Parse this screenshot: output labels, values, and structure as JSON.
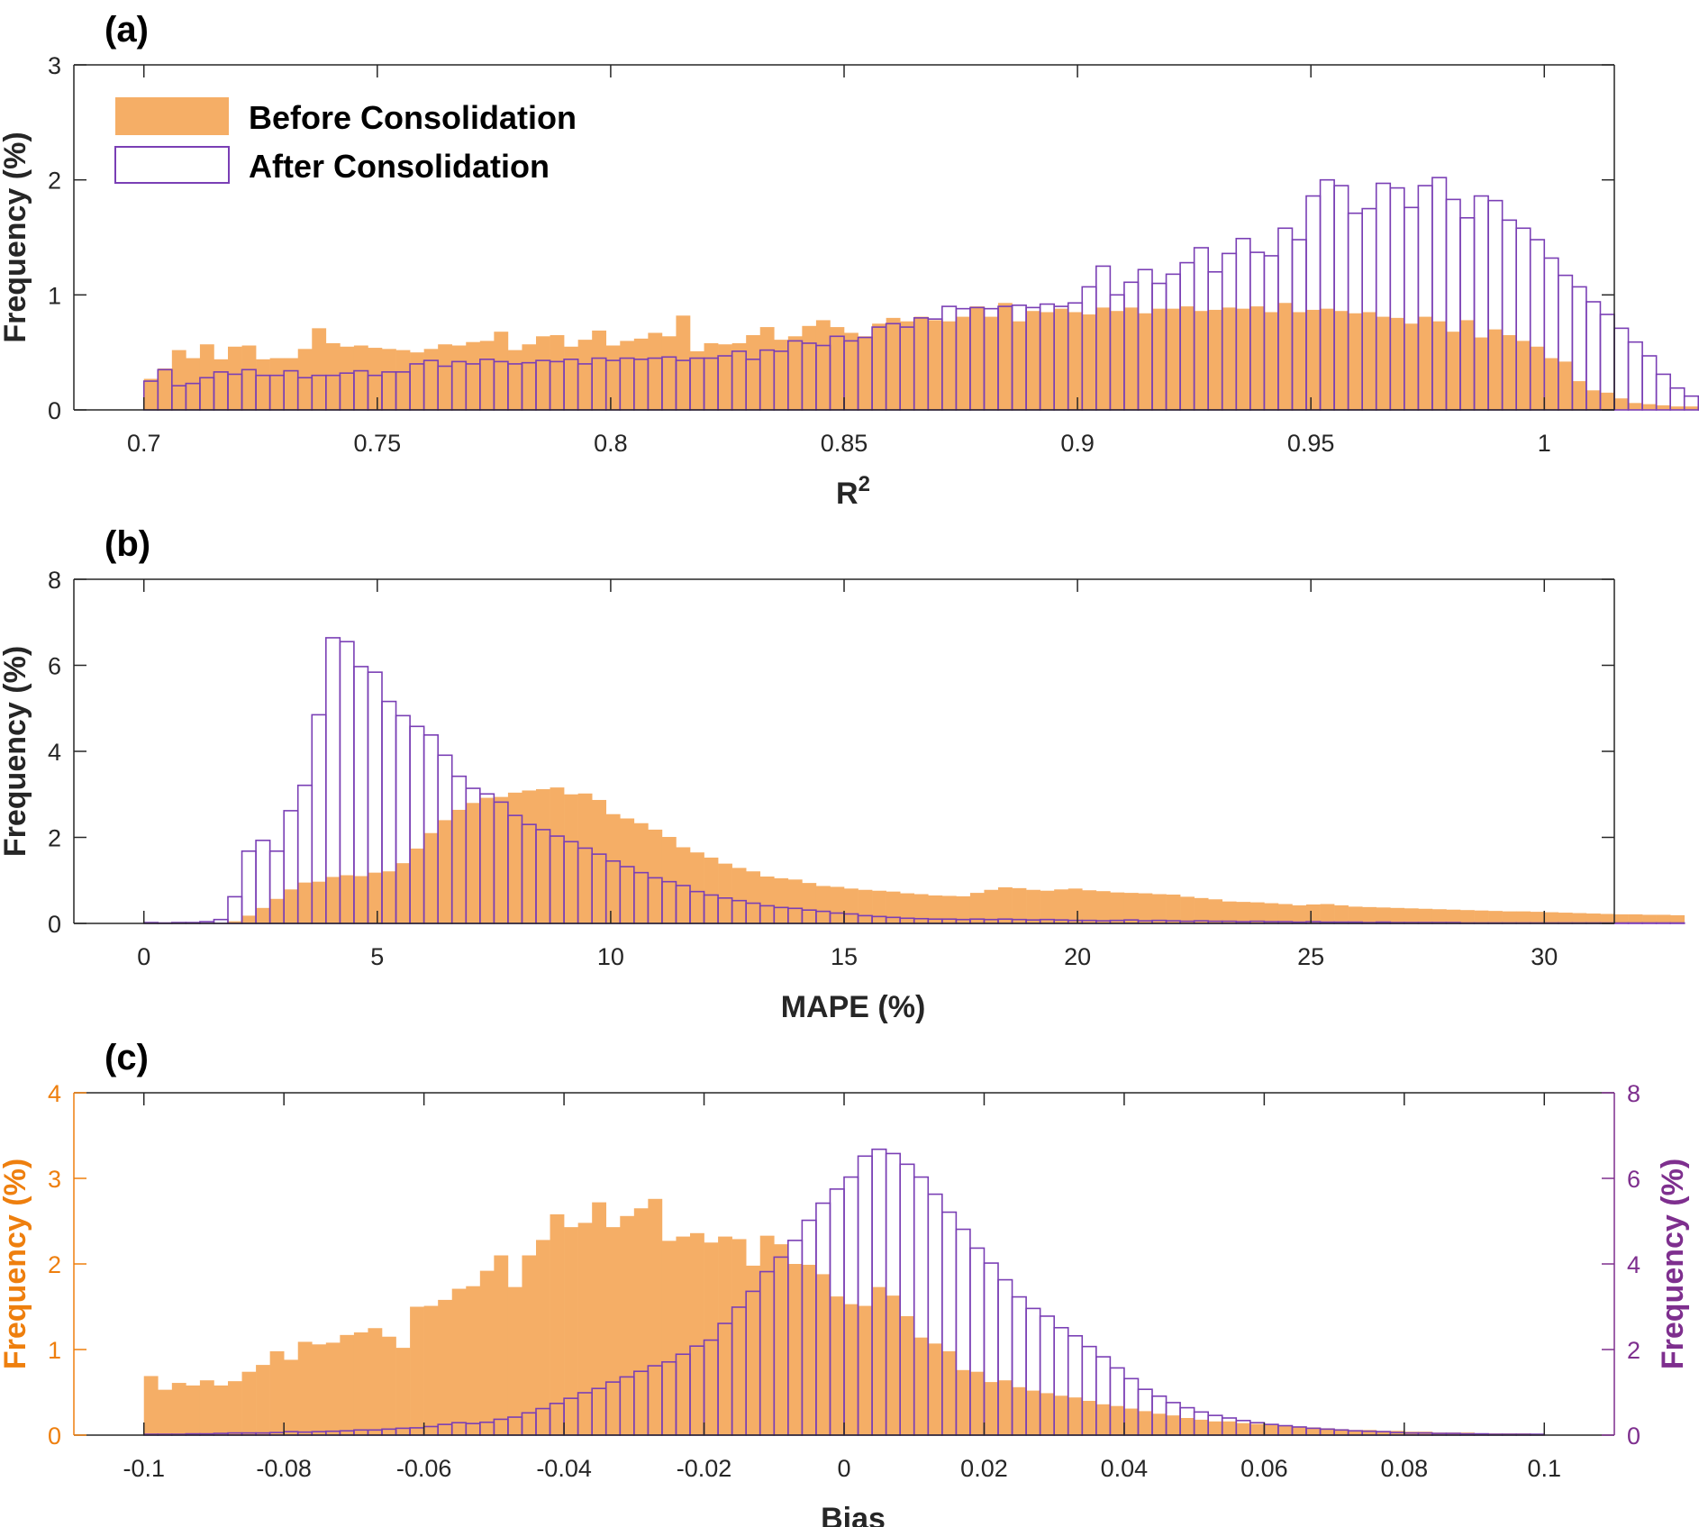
{
  "colors": {
    "before_fill": "#f5ae66",
    "after_stroke": "#7a3fb5",
    "right_axis": "#7e2f8e",
    "left_axis_c": "#ee7f0e",
    "axis": "#262626"
  },
  "legend": {
    "before": "Before Consolidation",
    "after": "After Consolidation",
    "placement": "top-left"
  },
  "chart_data": [
    {
      "type": "bar",
      "panel": "(a)",
      "xlabel": "R",
      "xlabel_sup": "2",
      "ylabel": "Frequency (%)",
      "xlim": [
        0.685,
        1.015
      ],
      "ylim": [
        0,
        3
      ],
      "xticks": [
        0.7,
        0.75,
        0.8,
        0.85,
        0.9,
        0.95,
        1
      ],
      "xtick_labels": [
        "0.7",
        "0.75",
        "0.8",
        "0.85",
        "0.9",
        "0.95",
        "1"
      ],
      "yticks": [
        0,
        1,
        2,
        3
      ],
      "ytick_labels": [
        "0",
        "1",
        "2",
        "3"
      ],
      "bin_start": 0.7,
      "bin_width": 0.003,
      "series": [
        {
          "name": "Before Consolidation",
          "values": [
            0.27,
            0.36,
            0.52,
            0.45,
            0.57,
            0.44,
            0.55,
            0.56,
            0.44,
            0.45,
            0.45,
            0.53,
            0.71,
            0.58,
            0.55,
            0.56,
            0.54,
            0.53,
            0.52,
            0.5,
            0.53,
            0.57,
            0.56,
            0.59,
            0.6,
            0.68,
            0.52,
            0.57,
            0.64,
            0.65,
            0.55,
            0.61,
            0.69,
            0.56,
            0.6,
            0.62,
            0.67,
            0.64,
            0.82,
            0.51,
            0.58,
            0.57,
            0.58,
            0.65,
            0.72,
            0.61,
            0.64,
            0.73,
            0.78,
            0.72,
            0.67,
            0.64,
            0.75,
            0.8,
            0.77,
            0.81,
            0.78,
            0.77,
            0.81,
            0.9,
            0.81,
            0.93,
            0.77,
            0.86,
            0.85,
            0.88,
            0.85,
            0.83,
            0.89,
            0.86,
            0.89,
            0.84,
            0.88,
            0.88,
            0.9,
            0.86,
            0.87,
            0.89,
            0.88,
            0.9,
            0.85,
            0.93,
            0.85,
            0.87,
            0.88,
            0.86,
            0.84,
            0.85,
            0.81,
            0.8,
            0.75,
            0.81,
            0.77,
            0.68,
            0.78,
            0.63,
            0.7,
            0.65,
            0.6,
            0.55,
            0.45,
            0.42,
            0.25,
            0.17,
            0.15,
            0.1,
            0.06,
            0.05,
            0.04,
            0.03,
            0.03,
            0.02,
            0.01,
            0.01,
            0.01,
            0.0,
            0.0,
            0.0,
            0.0,
            0.0
          ]
        },
        {
          "name": "After Consolidation",
          "values": [
            0.25,
            0.35,
            0.21,
            0.23,
            0.28,
            0.33,
            0.31,
            0.35,
            0.3,
            0.3,
            0.34,
            0.28,
            0.3,
            0.3,
            0.32,
            0.34,
            0.3,
            0.33,
            0.33,
            0.4,
            0.43,
            0.38,
            0.42,
            0.4,
            0.44,
            0.42,
            0.4,
            0.41,
            0.43,
            0.42,
            0.44,
            0.4,
            0.45,
            0.43,
            0.45,
            0.44,
            0.45,
            0.46,
            0.43,
            0.45,
            0.45,
            0.47,
            0.51,
            0.44,
            0.52,
            0.51,
            0.6,
            0.58,
            0.56,
            0.64,
            0.6,
            0.63,
            0.72,
            0.75,
            0.72,
            0.8,
            0.79,
            0.9,
            0.88,
            0.89,
            0.88,
            0.9,
            0.91,
            0.89,
            0.92,
            0.9,
            0.93,
            1.07,
            1.25,
            1.0,
            1.11,
            1.22,
            1.1,
            1.18,
            1.28,
            1.41,
            1.2,
            1.36,
            1.49,
            1.37,
            1.34,
            1.58,
            1.48,
            1.86,
            2.0,
            1.95,
            1.71,
            1.75,
            1.97,
            1.93,
            1.76,
            1.95,
            2.02,
            1.83,
            1.67,
            1.86,
            1.82,
            1.65,
            1.58,
            1.48,
            1.32,
            1.17,
            1.07,
            0.94,
            0.83,
            0.71,
            0.59,
            0.47,
            0.31,
            0.19,
            0.12,
            0.05,
            0.02,
            0.01,
            0.0,
            0.0,
            0.0,
            0.0,
            0.0,
            0.0
          ]
        }
      ]
    },
    {
      "type": "bar",
      "panel": "(b)",
      "xlabel": "MAPE (%)",
      "ylabel": "Frequency (%)",
      "xlim": [
        -1.5,
        31.5
      ],
      "ylim": [
        0,
        8
      ],
      "xticks": [
        0,
        5,
        10,
        15,
        20,
        25,
        30
      ],
      "xtick_labels": [
        "0",
        "5",
        "10",
        "15",
        "20",
        "25",
        "30"
      ],
      "yticks": [
        0,
        2,
        4,
        6,
        8
      ],
      "ytick_labels": [
        "0",
        "2",
        "4",
        "6",
        "8"
      ],
      "bin_start": 0,
      "bin_width": 0.3,
      "series": [
        {
          "name": "Before Consolidation",
          "values": [
            0,
            0,
            0,
            0,
            0,
            0.01,
            0.05,
            0.18,
            0.36,
            0.57,
            0.79,
            0.95,
            0.97,
            1.08,
            1.12,
            1.1,
            1.18,
            1.21,
            1.4,
            1.74,
            2.1,
            2.4,
            2.64,
            2.8,
            2.92,
            2.94,
            3.04,
            3.09,
            3.12,
            3.16,
            3.0,
            3.02,
            2.87,
            2.54,
            2.44,
            2.33,
            2.18,
            2.01,
            1.77,
            1.65,
            1.53,
            1.39,
            1.29,
            1.21,
            1.09,
            1.05,
            1.02,
            0.94,
            0.87,
            0.85,
            0.81,
            0.78,
            0.76,
            0.74,
            0.7,
            0.68,
            0.65,
            0.64,
            0.63,
            0.71,
            0.78,
            0.84,
            0.82,
            0.78,
            0.76,
            0.79,
            0.81,
            0.77,
            0.75,
            0.72,
            0.71,
            0.7,
            0.68,
            0.67,
            0.62,
            0.59,
            0.56,
            0.51,
            0.5,
            0.49,
            0.47,
            0.45,
            0.42,
            0.44,
            0.45,
            0.42,
            0.39,
            0.38,
            0.37,
            0.36,
            0.35,
            0.34,
            0.33,
            0.32,
            0.31,
            0.3,
            0.29,
            0.28,
            0.28,
            0.27,
            0.26,
            0.25,
            0.24,
            0.23,
            0.22,
            0.21,
            0.21,
            0.2,
            0.2,
            0.19
          ]
        },
        {
          "name": "After Consolidation",
          "values": [
            0.02,
            0.01,
            0.02,
            0.02,
            0.04,
            0.09,
            0.62,
            1.68,
            1.93,
            1.68,
            2.62,
            3.21,
            4.85,
            6.64,
            6.55,
            5.97,
            5.84,
            5.16,
            4.83,
            4.58,
            4.38,
            3.91,
            3.42,
            3.14,
            3.01,
            2.82,
            2.51,
            2.3,
            2.18,
            2.03,
            1.9,
            1.75,
            1.61,
            1.45,
            1.32,
            1.18,
            1.06,
            0.97,
            0.88,
            0.74,
            0.66,
            0.59,
            0.53,
            0.47,
            0.41,
            0.37,
            0.35,
            0.31,
            0.28,
            0.24,
            0.22,
            0.18,
            0.16,
            0.14,
            0.12,
            0.11,
            0.1,
            0.1,
            0.09,
            0.1,
            0.09,
            0.1,
            0.09,
            0.08,
            0.09,
            0.08,
            0.07,
            0.07,
            0.06,
            0.07,
            0.08,
            0.06,
            0.07,
            0.06,
            0.05,
            0.06,
            0.05,
            0.05,
            0.04,
            0.05,
            0.04,
            0.04,
            0.03,
            0.04,
            0.03,
            0.03,
            0.03,
            0.02,
            0.03,
            0.02,
            0.02,
            0.02,
            0.02,
            0.02,
            0.01,
            0.01,
            0.01,
            0.01,
            0.01,
            0.01,
            0.01,
            0.01,
            0.01,
            0.01,
            0.01,
            0.01,
            0.01,
            0.01,
            0.01,
            0.01
          ]
        }
      ]
    },
    {
      "type": "bar",
      "panel": "(c)",
      "xlabel": "Bias",
      "ylabel_left": "Frequency (%)",
      "ylabel_right": "Frequency (%)",
      "xlim": [
        -0.11,
        0.11
      ],
      "ylim_left": [
        0,
        4
      ],
      "ylim_right": [
        0,
        8
      ],
      "xticks": [
        -0.1,
        -0.08,
        -0.06,
        -0.04,
        -0.02,
        0,
        0.02,
        0.04,
        0.06,
        0.08,
        0.1
      ],
      "xtick_labels": [
        "-0.1",
        "-0.08",
        "-0.06",
        "-0.04",
        "-0.02",
        "0",
        "0.02",
        "0.04",
        "0.06",
        "0.08",
        "0.1"
      ],
      "yticks_left": [
        0,
        1,
        2,
        3,
        4
      ],
      "ytick_labels_left": [
        "0",
        "1",
        "2",
        "3",
        "4"
      ],
      "yticks_right": [
        0,
        2,
        4,
        6,
        8
      ],
      "ytick_labels_right": [
        "0",
        "2",
        "4",
        "6",
        "8"
      ],
      "bin_start": -0.1,
      "bin_width": 0.002,
      "series": [
        {
          "name": "Before Consolidation",
          "axis": "left",
          "values": [
            0.69,
            0.53,
            0.61,
            0.58,
            0.64,
            0.58,
            0.63,
            0.74,
            0.82,
            0.98,
            0.88,
            1.09,
            1.06,
            1.08,
            1.17,
            1.2,
            1.25,
            1.15,
            1.02,
            1.5,
            1.51,
            1.58,
            1.71,
            1.74,
            1.92,
            2.1,
            1.73,
            2.1,
            2.28,
            2.58,
            2.43,
            2.48,
            2.72,
            2.43,
            2.56,
            2.65,
            2.76,
            2.27,
            2.32,
            2.36,
            2.25,
            2.32,
            2.29,
            1.98,
            2.33,
            2.23,
            2.0,
            1.99,
            1.88,
            1.62,
            1.53,
            1.51,
            1.73,
            1.63,
            1.39,
            1.14,
            1.07,
            0.98,
            0.76,
            0.74,
            0.62,
            0.64,
            0.56,
            0.52,
            0.49,
            0.46,
            0.44,
            0.4,
            0.36,
            0.34,
            0.31,
            0.28,
            0.25,
            0.23,
            0.2,
            0.18,
            0.16,
            0.16,
            0.14,
            0.13,
            0.12,
            0.11,
            0.1,
            0.09,
            0.08,
            0.07,
            0.06,
            0.06,
            0.05,
            0.05,
            0.04,
            0.04,
            0.03,
            0.03,
            0.03,
            0.02,
            0.02,
            0.02,
            0.02,
            0.01
          ]
        },
        {
          "name": "After Consolidation",
          "axis": "right",
          "values": [
            0.02,
            0.02,
            0.02,
            0.03,
            0.03,
            0.04,
            0.05,
            0.05,
            0.05,
            0.06,
            0.08,
            0.07,
            0.08,
            0.09,
            0.1,
            0.12,
            0.12,
            0.14,
            0.16,
            0.17,
            0.2,
            0.25,
            0.29,
            0.27,
            0.3,
            0.37,
            0.42,
            0.52,
            0.62,
            0.74,
            0.86,
            0.99,
            1.09,
            1.24,
            1.36,
            1.49,
            1.62,
            1.71,
            1.89,
            2.08,
            2.22,
            2.61,
            2.99,
            3.36,
            3.82,
            4.16,
            4.55,
            5.02,
            5.42,
            5.75,
            6.03,
            6.52,
            6.68,
            6.58,
            6.33,
            6.03,
            5.63,
            5.21,
            4.81,
            4.37,
            4.02,
            3.63,
            3.23,
            2.96,
            2.78,
            2.51,
            2.32,
            2.07,
            1.83,
            1.57,
            1.32,
            1.07,
            0.91,
            0.76,
            0.64,
            0.54,
            0.46,
            0.4,
            0.34,
            0.29,
            0.25,
            0.22,
            0.19,
            0.16,
            0.14,
            0.12,
            0.1,
            0.09,
            0.08,
            0.06,
            0.05,
            0.05,
            0.04,
            0.04,
            0.03,
            0.03,
            0.02,
            0.02,
            0.02,
            0.02
          ]
        }
      ]
    }
  ]
}
